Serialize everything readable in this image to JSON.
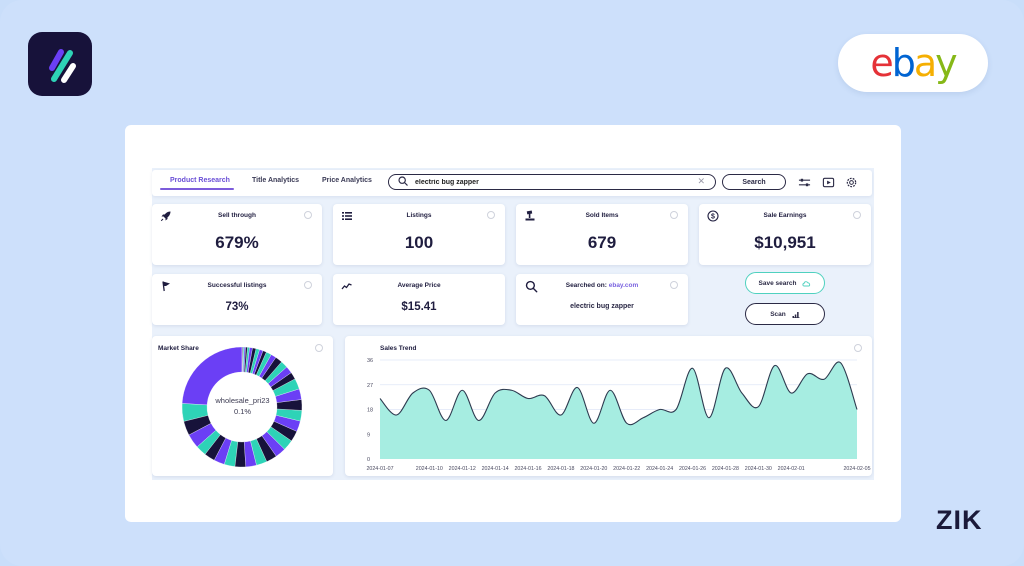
{
  "branding": {
    "app_logo": "zik-analytics-logo",
    "marketplace_logo": {
      "letters": [
        "e",
        "b",
        "a",
        "y"
      ],
      "colors": [
        "#e53238",
        "#0064d2",
        "#f5af02",
        "#86b817"
      ]
    },
    "watermark": "ZIK"
  },
  "topbar": {
    "tabs": [
      {
        "label": "Product Research",
        "active": true
      },
      {
        "label": "Title Analytics",
        "active": false
      },
      {
        "label": "Price Analytics",
        "active": false
      }
    ],
    "search": {
      "value": "electric bug zapper",
      "placeholder": ""
    },
    "search_button": "Search",
    "icons": [
      "filter-sliders-icon",
      "video-play-icon",
      "gear-icon"
    ]
  },
  "stats": [
    {
      "id": "sell_through",
      "title": "Sell through",
      "value": "679%",
      "icon": "rocket-icon"
    },
    {
      "id": "listings",
      "title": "Listings",
      "value": "100",
      "icon": "list-icon"
    },
    {
      "id": "sold_items",
      "title": "Sold Items",
      "value": "679",
      "icon": "gavel-icon"
    },
    {
      "id": "sale_earnings",
      "title": "Sale Earnings",
      "value": "$10,951",
      "icon": "dollar-circle-icon"
    },
    {
      "id": "successful_listings",
      "title": "Successful listings",
      "value": "73%",
      "icon": "flag-icon"
    },
    {
      "id": "average_price",
      "title": "Average Price",
      "value": "$15.41",
      "icon": "trend-line-icon"
    }
  ],
  "searched_on": {
    "label": "Searched on:",
    "site": "ebay.com",
    "query": "electric bug zapper"
  },
  "actions": {
    "save_search": "Save search",
    "scan": "Scan"
  },
  "market_share": {
    "title": "Market Share",
    "center_label": "wholesale_pri23",
    "center_value": "0.1%",
    "colors": {
      "purple": "#6b3ff5",
      "teal": "#2ed3b7",
      "navy": "#17123a"
    }
  },
  "sales_trend": {
    "title": "Sales Trend",
    "fill_color": "#a6ede1",
    "line_color": "#2d3a4f"
  },
  "chart_data": [
    {
      "type": "area",
      "title": "Sales Trend",
      "xlabel": "",
      "ylabel": "",
      "ylim": [
        0,
        36
      ],
      "yticks": [
        0,
        9,
        18,
        27,
        36
      ],
      "grid": true,
      "xtick_labels": [
        "2024-01-07",
        "2024-01-10",
        "2024-01-12",
        "2024-01-14",
        "2024-01-16",
        "2024-01-18",
        "2024-01-20",
        "2024-01-22",
        "2024-01-24",
        "2024-01-26",
        "2024-01-28",
        "2024-01-30",
        "2024-02-01",
        "2024-02-05"
      ],
      "x": [
        "2024-01-07",
        "2024-01-08",
        "2024-01-09",
        "2024-01-10",
        "2024-01-11",
        "2024-01-12",
        "2024-01-13",
        "2024-01-14",
        "2024-01-15",
        "2024-01-16",
        "2024-01-17",
        "2024-01-18",
        "2024-01-19",
        "2024-01-20",
        "2024-01-21",
        "2024-01-22",
        "2024-01-23",
        "2024-01-24",
        "2024-01-25",
        "2024-01-26",
        "2024-01-27",
        "2024-01-28",
        "2024-01-29",
        "2024-01-30",
        "2024-01-31",
        "2024-02-01",
        "2024-02-02",
        "2024-02-03",
        "2024-02-04",
        "2024-02-05"
      ],
      "series": [
        {
          "name": "Sales",
          "values": [
            22,
            16,
            24,
            25,
            14,
            25,
            14,
            24,
            25,
            22,
            23,
            16,
            26,
            13,
            25,
            13,
            15,
            18,
            18,
            33,
            15,
            33,
            24,
            19,
            34,
            24,
            31,
            29,
            35,
            18
          ]
        }
      ]
    },
    {
      "type": "pie",
      "title": "Market Share",
      "donut": true,
      "highlighted": {
        "label": "wholesale_pri23",
        "value": 0.1
      },
      "values": [
        25,
        5,
        4,
        4,
        3,
        3,
        3,
        3,
        3,
        3,
        3,
        3,
        3,
        3,
        3,
        3,
        3,
        3,
        3,
        3,
        2,
        2,
        2,
        2,
        1.5,
        1.5,
        1,
        1,
        1,
        1,
        0.8,
        0.6,
        0.5,
        0.4,
        0.3,
        0.2,
        0.1
      ]
    }
  ]
}
